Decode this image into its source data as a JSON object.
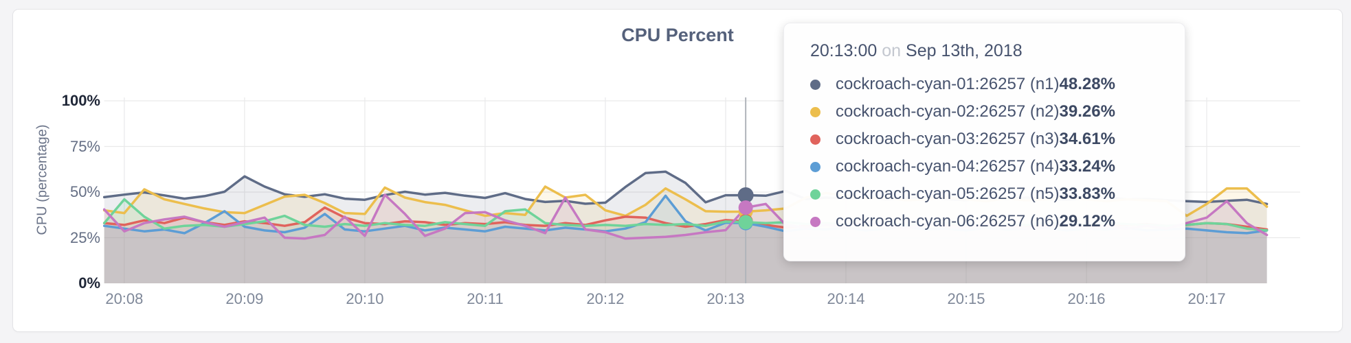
{
  "chart": {
    "title": "CPU Percent",
    "y_axis": {
      "label": "CPU (percentage)",
      "ticks": [
        {
          "value": 0,
          "label": "0%",
          "maxmin": true
        },
        {
          "value": 25,
          "label": "25%",
          "maxmin": false
        },
        {
          "value": 50,
          "label": "50%",
          "maxmin": false
        },
        {
          "value": 75,
          "label": "75%",
          "maxmin": false
        },
        {
          "value": 100,
          "label": "100%",
          "maxmin": true
        }
      ]
    },
    "x_axis": {
      "ticks": [
        "20:08",
        "20:09",
        "20:10",
        "20:11",
        "20:12",
        "20:13",
        "20:14",
        "20:15",
        "20:16",
        "20:17"
      ]
    }
  },
  "tooltip": {
    "time": "20:13:00",
    "conjunction": "on",
    "date": "Sep 13th, 2018",
    "rows": [
      {
        "label": "cockroach-cyan-01:26257 (n1)",
        "value": "48.28%",
        "color": "#5f6c87"
      },
      {
        "label": "cockroach-cyan-02:26257 (n2)",
        "value": "39.26%",
        "color": "#ecbe4d"
      },
      {
        "label": "cockroach-cyan-03:26257 (n3)",
        "value": "34.61%",
        "color": "#e0635c"
      },
      {
        "label": "cockroach-cyan-04:26257 (n4)",
        "value": "33.24%",
        "color": "#5c9dd5"
      },
      {
        "label": "cockroach-cyan-05:26257 (n5)",
        "value": "33.83%",
        "color": "#6fd39a"
      },
      {
        "label": "cockroach-cyan-06:26257 (n6)",
        "value": "29.12%",
        "color": "#c678c2"
      }
    ]
  },
  "chart_data": {
    "type": "area",
    "title": "CPU Percent",
    "xlabel": "",
    "ylabel": "CPU (percentage)",
    "ylim": [
      0,
      100
    ],
    "grid": true,
    "legend_position": "tooltip-only",
    "x": [
      "20:07:50",
      "20:08:00",
      "20:08:10",
      "20:08:20",
      "20:08:30",
      "20:08:40",
      "20:08:50",
      "20:09:00",
      "20:09:10",
      "20:09:20",
      "20:09:30",
      "20:09:40",
      "20:09:50",
      "20:10:00",
      "20:10:10",
      "20:10:20",
      "20:10:30",
      "20:10:40",
      "20:10:50",
      "20:11:00",
      "20:11:10",
      "20:11:20",
      "20:11:30",
      "20:11:40",
      "20:11:50",
      "20:12:00",
      "20:12:10",
      "20:12:20",
      "20:12:30",
      "20:12:40",
      "20:12:50",
      "20:13:00",
      "20:13:10",
      "20:13:20",
      "20:13:30",
      "20:13:40",
      "20:13:50",
      "20:14:00",
      "20:14:10",
      "20:14:20",
      "20:14:30",
      "20:14:40",
      "20:14:50",
      "20:15:00",
      "20:15:10",
      "20:15:20",
      "20:15:30",
      "20:15:40",
      "20:15:50",
      "20:16:00",
      "20:16:10",
      "20:16:20",
      "20:16:30",
      "20:16:40",
      "20:16:50",
      "20:17:00",
      "20:17:10",
      "20:17:20",
      "20:17:30"
    ],
    "series": [
      {
        "name": "cockroach-cyan-01:26257 (n1)",
        "color": "#5f6c87",
        "values": [
          47.2,
          48.6,
          49.8,
          48.2,
          46.4,
          47.8,
          50.2,
          58.6,
          53.0,
          48.8,
          47.4,
          48.8,
          46.4,
          45.8,
          48.4,
          50.2,
          48.6,
          49.6,
          48.0,
          46.8,
          49.4,
          46.2,
          44.6,
          45.2,
          43.6,
          44.2,
          52.8,
          60.4,
          61.2,
          55.0,
          44.4,
          48.28,
          48.3,
          48.0,
          50.6,
          46.2,
          47.0,
          46.4,
          47.2,
          46.0,
          46.6,
          47.4,
          46.2,
          45.6,
          46.8,
          46.2,
          47.0,
          46.4,
          45.8,
          46.6,
          47.2,
          46.0,
          46.2,
          45.6,
          45.0,
          44.6,
          45.2,
          45.8,
          43.5
        ]
      },
      {
        "name": "cockroach-cyan-02:26257 (n2)",
        "color": "#ecbe4d",
        "values": [
          40.0,
          38.5,
          51.5,
          46.0,
          43.5,
          41.0,
          39.0,
          38.5,
          43.0,
          47.5,
          48.5,
          44.0,
          38.5,
          38.0,
          52.5,
          47.0,
          44.5,
          43.0,
          40.0,
          37.0,
          38.5,
          37.5,
          53.0,
          47.0,
          48.5,
          40.0,
          37.0,
          43.0,
          52.0,
          46.0,
          39.5,
          39.26,
          39.3,
          40.0,
          41.0,
          47.0,
          49.5,
          48.0,
          46.5,
          47.0,
          45.5,
          46.0,
          47.0,
          46.0,
          45.0,
          46.5,
          45.5,
          46.0,
          47.0,
          46.0,
          45.0,
          46.0,
          45.5,
          45.0,
          37.0,
          43.5,
          52.0,
          52.0,
          42.0
        ]
      },
      {
        "name": "cockroach-cyan-03:26257 (n3)",
        "color": "#e0635c",
        "values": [
          33.0,
          32.0,
          34.5,
          33.0,
          36.0,
          33.5,
          32.0,
          34.0,
          33.0,
          31.5,
          33.5,
          41.5,
          36.0,
          33.0,
          32.5,
          34.0,
          33.5,
          32.0,
          33.0,
          32.5,
          33.5,
          32.0,
          31.5,
          33.0,
          32.0,
          34.5,
          36.5,
          36.0,
          33.0,
          31.0,
          32.5,
          34.61,
          34.0,
          32.0,
          30.5,
          31.5,
          32.5,
          32.0,
          33.0,
          32.0,
          31.5,
          32.5,
          32.0,
          31.0,
          32.0,
          32.5,
          31.5,
          32.0,
          32.5,
          32.0,
          31.5,
          32.0,
          32.5,
          31.5,
          32.0,
          33.0,
          32.5,
          31.0,
          29.5
        ]
      },
      {
        "name": "cockroach-cyan-04:26257 (n4)",
        "color": "#5c9dd5",
        "values": [
          31.5,
          30.0,
          28.5,
          29.5,
          27.5,
          33.0,
          39.5,
          31.0,
          29.0,
          28.0,
          30.5,
          38.0,
          29.5,
          28.5,
          30.0,
          31.5,
          29.0,
          30.5,
          29.5,
          28.5,
          31.0,
          30.0,
          29.0,
          30.5,
          29.5,
          28.5,
          30.0,
          33.5,
          48.0,
          34.0,
          29.0,
          33.24,
          33.0,
          31.0,
          28.5,
          30.0,
          29.5,
          30.5,
          29.0,
          30.0,
          31.0,
          29.5,
          30.0,
          29.0,
          30.5,
          29.5,
          30.0,
          30.5,
          29.0,
          30.0,
          29.5,
          30.5,
          29.0,
          29.5,
          30.0,
          29.0,
          28.0,
          27.5,
          29.0
        ]
      },
      {
        "name": "cockroach-cyan-05:26257 (n5)",
        "color": "#6fd39a",
        "values": [
          33.0,
          46.0,
          36.5,
          30.0,
          31.5,
          32.0,
          31.0,
          32.5,
          34.0,
          37.0,
          32.0,
          31.0,
          32.5,
          31.5,
          33.0,
          32.0,
          31.5,
          33.5,
          32.5,
          31.5,
          39.5,
          40.5,
          33.0,
          32.0,
          31.5,
          32.0,
          31.5,
          32.5,
          32.0,
          32.5,
          31.5,
          33.83,
          33.5,
          33.0,
          33.5,
          32.5,
          33.0,
          32.0,
          32.5,
          33.0,
          32.0,
          32.5,
          33.0,
          32.0,
          31.5,
          32.5,
          32.0,
          33.0,
          32.5,
          32.0,
          33.0,
          32.5,
          32.0,
          31.5,
          32.0,
          33.0,
          32.5,
          30.0,
          29.0
        ]
      },
      {
        "name": "cockroach-cyan-06:26257 (n6)",
        "color": "#c678c2",
        "values": [
          40.5,
          28.5,
          33.0,
          35.0,
          36.5,
          33.5,
          31.0,
          33.5,
          36.0,
          25.0,
          24.5,
          26.5,
          36.5,
          26.0,
          48.5,
          38.0,
          26.0,
          30.0,
          38.5,
          39.0,
          34.5,
          31.5,
          27.5,
          47.0,
          29.5,
          28.0,
          24.5,
          25.0,
          25.5,
          26.5,
          28.0,
          29.12,
          41.5,
          43.5,
          32.0,
          30.5,
          32.0,
          31.0,
          33.5,
          31.5,
          30.0,
          32.5,
          31.0,
          30.5,
          32.0,
          31.5,
          30.0,
          31.0,
          32.0,
          30.5,
          31.0,
          30.0,
          31.5,
          30.0,
          33.0,
          36.0,
          45.0,
          33.0,
          26.5
        ]
      }
    ],
    "hover": {
      "time": "20:13:00",
      "date": "Sep 13th, 2018",
      "values": {
        "n1": 48.28,
        "n2": 39.26,
        "n3": 34.61,
        "n4": 33.24,
        "n5": 33.83,
        "n6": 29.12
      }
    }
  }
}
